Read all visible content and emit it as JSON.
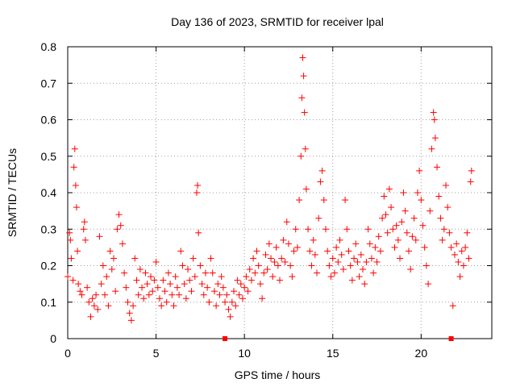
{
  "chart_data": {
    "type": "scatter",
    "title": "Day 136 of 2023, SRMTID for receiver lpal",
    "xlabel": "GPS time / hours",
    "ylabel": "SRMTID / TECUs",
    "xlim": [
      0,
      24
    ],
    "ylim": [
      0,
      0.8
    ],
    "xticks": [
      0,
      5,
      10,
      15,
      20
    ],
    "yticks": [
      0,
      0.1,
      0.2,
      0.3,
      0.4,
      0.5,
      0.6,
      0.7,
      0.8
    ],
    "xtick_labels": [
      "0",
      "5",
      "10",
      "15",
      "20"
    ],
    "ytick_labels": [
      "0",
      "0.1",
      "0.2",
      "0.3",
      "0.4",
      "0.5",
      "0.6",
      "0.7",
      "0.8"
    ],
    "grid": true,
    "marker": "plus",
    "color": "#ff0000",
    "series": [
      {
        "name": "SRMTID",
        "points": [
          [
            0.0,
            0.17
          ],
          [
            0.1,
            0.29
          ],
          [
            0.15,
            0.27
          ],
          [
            0.2,
            0.22
          ],
          [
            0.3,
            0.16
          ],
          [
            0.35,
            0.47
          ],
          [
            0.4,
            0.52
          ],
          [
            0.45,
            0.42
          ],
          [
            0.5,
            0.36
          ],
          [
            0.55,
            0.24
          ],
          [
            0.6,
            0.15
          ],
          [
            0.7,
            0.13
          ],
          [
            0.8,
            0.12
          ],
          [
            0.9,
            0.3
          ],
          [
            0.95,
            0.32
          ],
          [
            1.0,
            0.27
          ],
          [
            1.1,
            0.14
          ],
          [
            1.2,
            0.1
          ],
          [
            1.3,
            0.06
          ],
          [
            1.4,
            0.11
          ],
          [
            1.5,
            0.09
          ],
          [
            1.6,
            0.12
          ],
          [
            1.7,
            0.08
          ],
          [
            1.8,
            0.28
          ],
          [
            1.9,
            0.15
          ],
          [
            2.0,
            0.2
          ],
          [
            2.1,
            0.12
          ],
          [
            2.2,
            0.17
          ],
          [
            2.3,
            0.09
          ],
          [
            2.4,
            0.24
          ],
          [
            2.5,
            0.19
          ],
          [
            2.6,
            0.22
          ],
          [
            2.7,
            0.13
          ],
          [
            2.8,
            0.3
          ],
          [
            2.9,
            0.34
          ],
          [
            3.0,
            0.31
          ],
          [
            3.1,
            0.26
          ],
          [
            3.2,
            0.18
          ],
          [
            3.3,
            0.14
          ],
          [
            3.4,
            0.1
          ],
          [
            3.5,
            0.07
          ],
          [
            3.6,
            0.05
          ],
          [
            3.7,
            0.09
          ],
          [
            3.8,
            0.22
          ],
          [
            3.9,
            0.16
          ],
          [
            4.0,
            0.12
          ],
          [
            4.1,
            0.19
          ],
          [
            4.2,
            0.14
          ],
          [
            4.3,
            0.11
          ],
          [
            4.4,
            0.18
          ],
          [
            4.5,
            0.15
          ],
          [
            4.6,
            0.12
          ],
          [
            4.7,
            0.17
          ],
          [
            4.8,
            0.13
          ],
          [
            4.9,
            0.16
          ],
          [
            5.0,
            0.21
          ],
          [
            5.1,
            0.14
          ],
          [
            5.2,
            0.11
          ],
          [
            5.3,
            0.09
          ],
          [
            5.4,
            0.16
          ],
          [
            5.5,
            0.13
          ],
          [
            5.6,
            0.1
          ],
          [
            5.7,
            0.18
          ],
          [
            5.8,
            0.15
          ],
          [
            5.9,
            0.12
          ],
          [
            6.0,
            0.09
          ],
          [
            6.1,
            0.17
          ],
          [
            6.2,
            0.14
          ],
          [
            6.3,
            0.12
          ],
          [
            6.4,
            0.24
          ],
          [
            6.5,
            0.2
          ],
          [
            6.6,
            0.15
          ],
          [
            6.7,
            0.11
          ],
          [
            6.8,
            0.19
          ],
          [
            6.9,
            0.16
          ],
          [
            7.0,
            0.13
          ],
          [
            7.1,
            0.22
          ],
          [
            7.2,
            0.17
          ],
          [
            7.3,
            0.4
          ],
          [
            7.35,
            0.42
          ],
          [
            7.4,
            0.29
          ],
          [
            7.5,
            0.2
          ],
          [
            7.6,
            0.15
          ],
          [
            7.7,
            0.12
          ],
          [
            7.8,
            0.18
          ],
          [
            7.9,
            0.14
          ],
          [
            8.0,
            0.1
          ],
          [
            8.1,
            0.22
          ],
          [
            8.2,
            0.18
          ],
          [
            8.3,
            0.13
          ],
          [
            8.4,
            0.09
          ],
          [
            8.5,
            0.15
          ],
          [
            8.6,
            0.12
          ],
          [
            8.7,
            0.17
          ],
          [
            8.8,
            0.14
          ],
          [
            8.9,
            0.1
          ],
          [
            9.0,
            0.12
          ],
          [
            9.1,
            0.08
          ],
          [
            9.2,
            0.06
          ],
          [
            9.3,
            0.1
          ],
          [
            9.4,
            0.13
          ],
          [
            9.5,
            0.09
          ],
          [
            9.6,
            0.16
          ],
          [
            9.7,
            0.12
          ],
          [
            9.8,
            0.15
          ],
          [
            9.9,
            0.11
          ],
          [
            10.0,
            0.14
          ],
          [
            10.1,
            0.17
          ],
          [
            10.2,
            0.13
          ],
          [
            10.3,
            0.19
          ],
          [
            10.4,
            0.16
          ],
          [
            10.5,
            0.22
          ],
          [
            10.6,
            0.18
          ],
          [
            10.7,
            0.24
          ],
          [
            10.8,
            0.2
          ],
          [
            10.9,
            0.15
          ],
          [
            11.0,
            0.11
          ],
          [
            11.1,
            0.18
          ],
          [
            11.2,
            0.23
          ],
          [
            11.3,
            0.19
          ],
          [
            11.4,
            0.26
          ],
          [
            11.5,
            0.22
          ],
          [
            11.6,
            0.17
          ],
          [
            11.7,
            0.21
          ],
          [
            11.8,
            0.25
          ],
          [
            11.9,
            0.2
          ],
          [
            12.0,
            0.16
          ],
          [
            12.1,
            0.22
          ],
          [
            12.2,
            0.27
          ],
          [
            12.3,
            0.21
          ],
          [
            12.4,
            0.32
          ],
          [
            12.5,
            0.26
          ],
          [
            12.6,
            0.2
          ],
          [
            12.7,
            0.17
          ],
          [
            12.8,
            0.24
          ],
          [
            12.9,
            0.3
          ],
          [
            13.0,
            0.25
          ],
          [
            13.1,
            0.38
          ],
          [
            13.2,
            0.5
          ],
          [
            13.25,
            0.66
          ],
          [
            13.3,
            0.77
          ],
          [
            13.35,
            0.72
          ],
          [
            13.4,
            0.62
          ],
          [
            13.45,
            0.52
          ],
          [
            13.5,
            0.41
          ],
          [
            13.6,
            0.3
          ],
          [
            13.7,
            0.24
          ],
          [
            13.8,
            0.2
          ],
          [
            13.9,
            0.27
          ],
          [
            14.0,
            0.23
          ],
          [
            14.1,
            0.18
          ],
          [
            14.2,
            0.33
          ],
          [
            14.3,
            0.43
          ],
          [
            14.4,
            0.46
          ],
          [
            14.5,
            0.38
          ],
          [
            14.6,
            0.3
          ],
          [
            14.7,
            0.24
          ],
          [
            14.8,
            0.2
          ],
          [
            14.9,
            0.17
          ],
          [
            15.0,
            0.22
          ],
          [
            15.1,
            0.18
          ],
          [
            15.2,
            0.25
          ],
          [
            15.3,
            0.21
          ],
          [
            15.4,
            0.27
          ],
          [
            15.5,
            0.23
          ],
          [
            15.6,
            0.19
          ],
          [
            15.7,
            0.38
          ],
          [
            15.8,
            0.3
          ],
          [
            15.9,
            0.24
          ],
          [
            16.0,
            0.2
          ],
          [
            16.1,
            0.16
          ],
          [
            16.2,
            0.22
          ],
          [
            16.3,
            0.26
          ],
          [
            16.4,
            0.21
          ],
          [
            16.5,
            0.17
          ],
          [
            16.6,
            0.23
          ],
          [
            16.7,
            0.19
          ],
          [
            16.8,
            0.15
          ],
          [
            16.9,
            0.21
          ],
          [
            17.0,
            0.3
          ],
          [
            17.1,
            0.26
          ],
          [
            17.2,
            0.22
          ],
          [
            17.3,
            0.18
          ],
          [
            17.4,
            0.25
          ],
          [
            17.5,
            0.21
          ],
          [
            17.6,
            0.28
          ],
          [
            17.7,
            0.24
          ],
          [
            17.8,
            0.33
          ],
          [
            17.9,
            0.39
          ],
          [
            18.0,
            0.34
          ],
          [
            18.1,
            0.29
          ],
          [
            18.2,
            0.41
          ],
          [
            18.3,
            0.36
          ],
          [
            18.4,
            0.3
          ],
          [
            18.5,
            0.25
          ],
          [
            18.6,
            0.31
          ],
          [
            18.7,
            0.27
          ],
          [
            18.8,
            0.22
          ],
          [
            18.9,
            0.32
          ],
          [
            19.0,
            0.4
          ],
          [
            19.1,
            0.35
          ],
          [
            19.2,
            0.29
          ],
          [
            19.3,
            0.24
          ],
          [
            19.4,
            0.19
          ],
          [
            19.5,
            0.28
          ],
          [
            19.6,
            0.33
          ],
          [
            19.7,
            0.27
          ],
          [
            19.8,
            0.4
          ],
          [
            19.9,
            0.46
          ],
          [
            20.0,
            0.38
          ],
          [
            20.1,
            0.31
          ],
          [
            20.2,
            0.25
          ],
          [
            20.3,
            0.2
          ],
          [
            20.4,
            0.15
          ],
          [
            20.5,
            0.35
          ],
          [
            20.6,
            0.52
          ],
          [
            20.7,
            0.62
          ],
          [
            20.75,
            0.6
          ],
          [
            20.8,
            0.55
          ],
          [
            20.9,
            0.47
          ],
          [
            21.0,
            0.39
          ],
          [
            21.1,
            0.33
          ],
          [
            21.2,
            0.27
          ],
          [
            21.3,
            0.3
          ],
          [
            21.4,
            0.42
          ],
          [
            21.5,
            0.36
          ],
          [
            21.6,
            0.29
          ],
          [
            21.7,
            0.25
          ],
          [
            21.8,
            0.09
          ],
          [
            21.9,
            0.23
          ],
          [
            22.0,
            0.26
          ],
          [
            22.1,
            0.21
          ],
          [
            22.2,
            0.17
          ],
          [
            22.3,
            0.24
          ],
          [
            22.4,
            0.2
          ],
          [
            22.5,
            0.25
          ],
          [
            22.6,
            0.29
          ],
          [
            22.7,
            0.22
          ],
          [
            22.8,
            0.43
          ],
          [
            22.85,
            0.46
          ]
        ]
      }
    ],
    "gap_markers": [
      [
        8.9,
        0.0
      ],
      [
        21.7,
        0.0
      ]
    ]
  }
}
